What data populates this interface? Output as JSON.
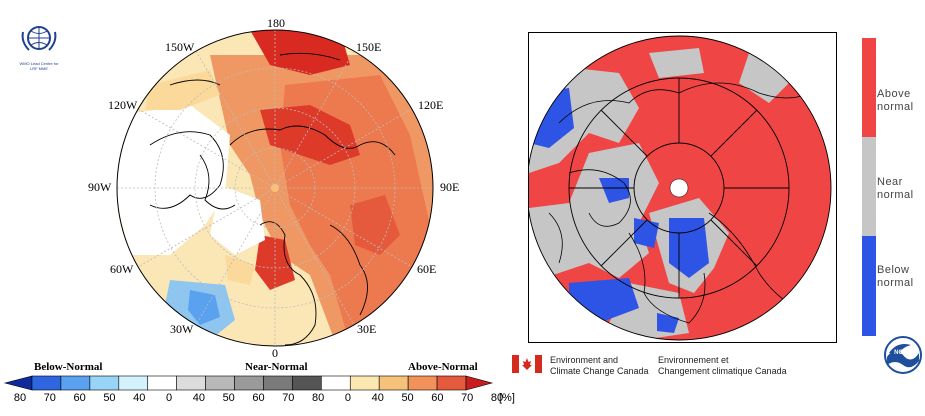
{
  "left_map": {
    "longitude_labels": [
      "180",
      "150E",
      "120E",
      "90E",
      "60E",
      "30E",
      "0",
      "30W",
      "60W",
      "90W",
      "120W",
      "150W"
    ]
  },
  "wmo_logo": {
    "text_line1": "WMO Lead Centre for",
    "text_line2": "LRF MME"
  },
  "left_colorbar": {
    "below_label": "Below-Normal",
    "near_label": "Near-Normal",
    "above_label": "Above-Normal",
    "ticks": [
      "80",
      "70",
      "60",
      "50",
      "40",
      "0",
      "40",
      "50",
      "60",
      "70",
      "80",
      "0",
      "40",
      "50",
      "60",
      "70",
      "80"
    ],
    "unit": "[%]",
    "colors": [
      "#0f2a9c",
      "#2f66e0",
      "#5aa2f0",
      "#98d4f5",
      "#d4f2fb",
      "#ffffff",
      "#dcdcdc",
      "#b8b8b8",
      "#9a9a9a",
      "#7a7a7a",
      "#555555",
      "#ffffff",
      "#fbe7b0",
      "#f6c27a",
      "#f0925a",
      "#e55a3c",
      "#c81e1e"
    ]
  },
  "right_legend": {
    "above_label_1": "Above",
    "above_label_2": "normal",
    "near_label_1": "Near",
    "near_label_2": "normal",
    "below_label_1": "Below",
    "below_label_2": "normal",
    "above_color": "#f04545",
    "near_color": "#c6c6c6",
    "below_color": "#2e54e6"
  },
  "eccc": {
    "en_line1": "Environment and",
    "en_line2": "Climate Change Canada",
    "fr_line1": "Environnement et",
    "fr_line2": "Changement climatique Canada"
  },
  "noaa_logo": {
    "text": "NOAA"
  }
}
